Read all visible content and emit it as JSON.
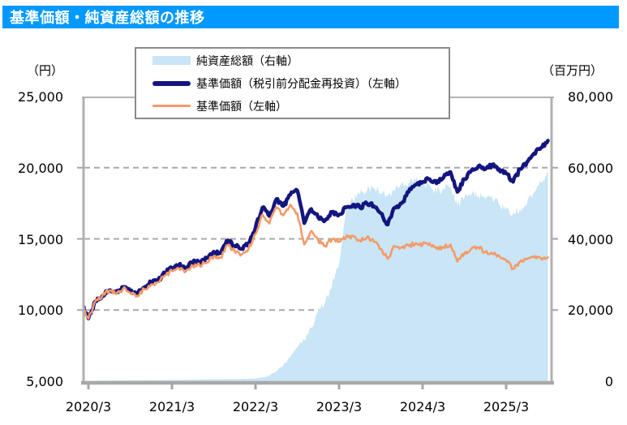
{
  "header": {
    "title": "基準価額・純資産総額の推移",
    "bar_color": "#0099FF"
  },
  "axes": {
    "left": {
      "unit": "（円）",
      "ticks": [
        "25,000",
        "20,000",
        "15,000",
        "10,000",
        "5,000"
      ],
      "tick_values": [
        25000,
        20000,
        15000,
        10000,
        5000
      ]
    },
    "right": {
      "unit": "（百万円）",
      "ticks": [
        "80,000",
        "60,000",
        "40,000",
        "20,000",
        "0"
      ],
      "tick_values": [
        80000,
        60000,
        40000,
        20000,
        0
      ]
    },
    "x": {
      "ticks": [
        "2020/3",
        "2021/3",
        "2022/3",
        "2023/3",
        "2024/3",
        "2025/3"
      ]
    }
  },
  "legend": {
    "items": [
      {
        "label": "純資産総額（右軸）",
        "swatch": "area",
        "color": "#C9E5F6"
      },
      {
        "label": "基準価額（税引前分配金再投資）（左軸）",
        "swatch": "thick-line",
        "color": "#151580"
      },
      {
        "label": "基準価額（左軸）",
        "swatch": "line",
        "color": "#F59A68"
      }
    ]
  },
  "chart_data": {
    "type": "line",
    "title": "基準価額・純資産総額の推移",
    "legend_position": "top",
    "grid": "horizontal dashed at left-axis 10000/15000/20000",
    "left_axis": {
      "label": "（円）",
      "range": [
        5000,
        25000
      ],
      "gridlines": [
        10000,
        15000,
        20000
      ]
    },
    "right_axis": {
      "label": "（百万円）",
      "range": [
        0,
        80000
      ]
    },
    "x_tick_labels": [
      "2020/3",
      "2021/3",
      "2022/3",
      "2023/3",
      "2024/3",
      "2025/3"
    ],
    "x_months": [
      "2020/2",
      "2020/3",
      "2020/4",
      "2020/5",
      "2020/6",
      "2020/7",
      "2020/8",
      "2020/9",
      "2020/10",
      "2020/11",
      "2020/12",
      "2021/1",
      "2021/2",
      "2021/3",
      "2021/4",
      "2021/5",
      "2021/6",
      "2021/7",
      "2021/8",
      "2021/9",
      "2021/10",
      "2021/11",
      "2021/12",
      "2022/1",
      "2022/2",
      "2022/3",
      "2022/4",
      "2022/5",
      "2022/6",
      "2022/7",
      "2022/8",
      "2022/9",
      "2022/10",
      "2022/11",
      "2022/12",
      "2023/1",
      "2023/2",
      "2023/3",
      "2023/4",
      "2023/5",
      "2023/6",
      "2023/7",
      "2023/8",
      "2023/9",
      "2023/10",
      "2023/11",
      "2023/12",
      "2024/1",
      "2024/2",
      "2024/3",
      "2024/4",
      "2024/5",
      "2024/6",
      "2024/7",
      "2024/8",
      "2024/9",
      "2024/10",
      "2024/11",
      "2024/12",
      "2025/1",
      "2025/2",
      "2025/3",
      "2025/4",
      "2025/5",
      "2025/6",
      "2025/7",
      "2025/8",
      "2025/9"
    ],
    "series": [
      {
        "name": "純資産総額（右軸）",
        "axis": "right",
        "type": "area",
        "color": "#C9E5F6",
        "width": 0,
        "unit": "百万円",
        "values": [
          80,
          100,
          130,
          160,
          190,
          210,
          230,
          250,
          270,
          290,
          310,
          330,
          350,
          380,
          400,
          420,
          450,
          470,
          500,
          520,
          550,
          580,
          620,
          650,
          700,
          800,
          1000,
          1600,
          2800,
          4500,
          6800,
          9500,
          11500,
          15000,
          20000,
          22000,
          27000,
          33000,
          48000,
          51000,
          52500,
          53500,
          54500,
          53000,
          52000,
          53500,
          55500,
          55800,
          56300,
          55800,
          55300,
          53000,
          54000,
          55000,
          49500,
          51500,
          52500,
          52000,
          51200,
          51500,
          49500,
          48200,
          47000,
          48500,
          50000,
          53000,
          56000,
          58800
        ]
      },
      {
        "name": "基準価額（税引前分配金再投資）（左軸）",
        "axis": "left",
        "type": "line",
        "color": "#151580",
        "width": 4.5,
        "unit": "円",
        "values": [
          10200,
          9400,
          10600,
          11000,
          11400,
          11200,
          11600,
          11300,
          11100,
          11600,
          11950,
          12100,
          12600,
          12950,
          13150,
          12950,
          13350,
          13400,
          13650,
          14100,
          14000,
          14900,
          14500,
          14300,
          14700,
          15800,
          17200,
          16600,
          17800,
          17300,
          18100,
          18400,
          16100,
          17100,
          16500,
          16300,
          16900,
          16700,
          17200,
          17400,
          17200,
          17500,
          17300,
          16800,
          16000,
          17200,
          17500,
          18300,
          18800,
          19000,
          19200,
          18900,
          19300,
          19700,
          18300,
          19200,
          19800,
          20100,
          19900,
          20200,
          19900,
          19600,
          19000,
          19900,
          20400,
          21000,
          21400,
          21900
        ]
      },
      {
        "name": "基準価額（左軸）",
        "axis": "left",
        "type": "line",
        "color": "#F59A68",
        "width": 2.6,
        "unit": "円",
        "values": [
          10200,
          9400,
          10600,
          11000,
          11380,
          11150,
          11520,
          11200,
          11000,
          11480,
          11800,
          11950,
          12430,
          12750,
          12930,
          12720,
          13100,
          13130,
          13360,
          13780,
          13670,
          14550,
          14130,
          13900,
          14280,
          15350,
          16700,
          16080,
          17230,
          16650,
          17400,
          16800,
          14600,
          15550,
          14900,
          14500,
          15000,
          14800,
          15100,
          15200,
          14900,
          15100,
          14800,
          14300,
          13600,
          14500,
          14400,
          14500,
          14700,
          14600,
          14700,
          14300,
          14400,
          14600,
          13400,
          14000,
          14300,
          14400,
          14100,
          14000,
          13800,
          13500,
          12900,
          13400,
          13600,
          13700,
          13650,
          13700
        ]
      }
    ]
  }
}
